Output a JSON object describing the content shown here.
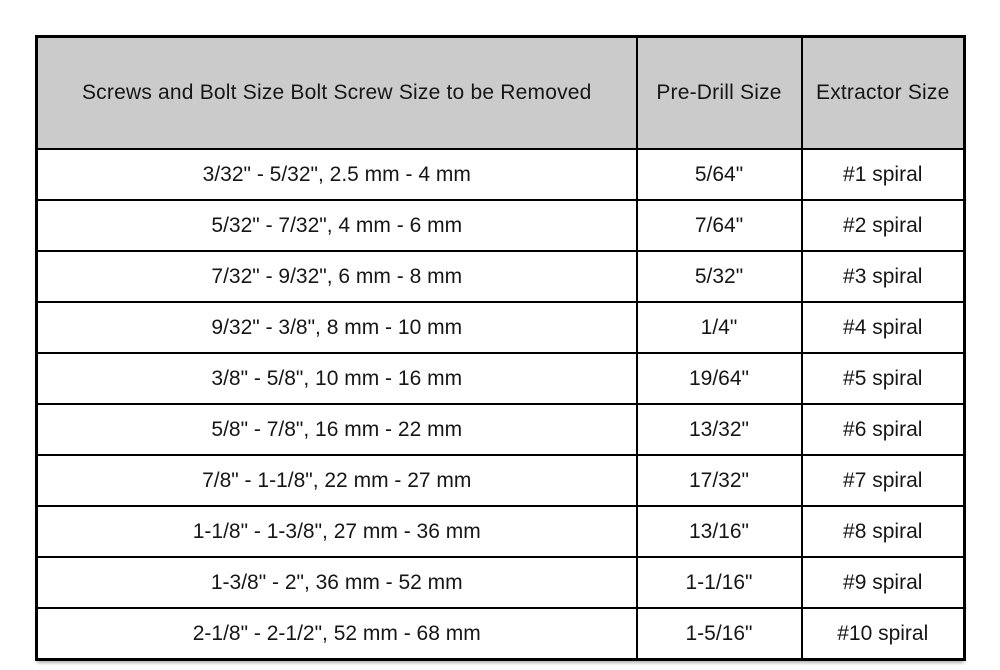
{
  "colors": {
    "page_background": "#ffffff",
    "header_background": "#cbcbcb",
    "border": "#000000",
    "text": "#161616"
  },
  "chart_data": {
    "type": "table",
    "columns": [
      "Screws and Bolt Size Bolt Screw Size to be Removed",
      "Pre-Drill Size",
      "Extractor Size"
    ],
    "rows": [
      [
        "3/32\" - 5/32\", 2.5 mm - 4 mm",
        "5/64\"",
        "#1 spiral"
      ],
      [
        "5/32\" - 7/32\", 4 mm - 6 mm",
        "7/64\"",
        "#2 spiral"
      ],
      [
        "7/32\" - 9/32\", 6 mm - 8 mm",
        "5/32\"",
        "#3 spiral"
      ],
      [
        "9/32\" - 3/8\", 8 mm - 10 mm",
        "1/4\"",
        "#4 spiral"
      ],
      [
        "3/8\" - 5/8\", 10 mm - 16 mm",
        "19/64\"",
        "#5 spiral"
      ],
      [
        "5/8\" - 7/8\", 16 mm - 22 mm",
        "13/32\"",
        "#6 spiral"
      ],
      [
        "7/8\" - 1-1/8\", 22 mm - 27 mm",
        "17/32\"",
        "#7 spiral"
      ],
      [
        "1-1/8\" - 1-3/8\", 27 mm - 36 mm",
        "13/16\"",
        "#8 spiral"
      ],
      [
        "1-3/8\" - 2\", 36 mm - 52 mm",
        "1-1/16\"",
        "#9 spiral"
      ],
      [
        "2-1/8\" - 2-1/2\", 52 mm - 68 mm",
        "1-5/16\"",
        "#10 spiral"
      ]
    ]
  }
}
